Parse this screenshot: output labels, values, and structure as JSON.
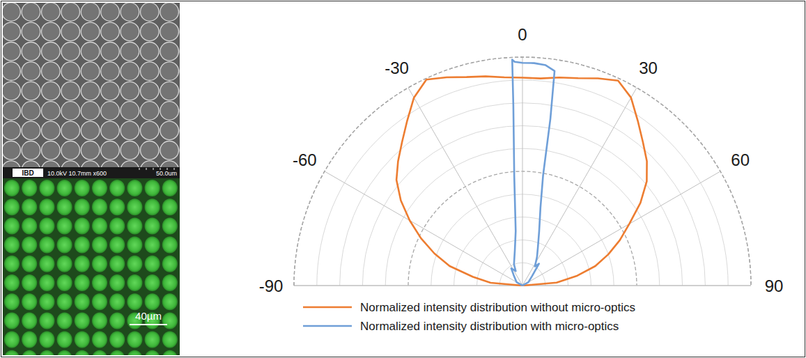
{
  "chart_data": {
    "type": "polar",
    "xlim": [
      -90,
      90
    ],
    "xticks": [
      -90,
      -60,
      -30,
      0,
      30,
      60,
      90
    ],
    "ylim": [
      0,
      1
    ],
    "yticks": [
      0,
      0.1,
      0.2,
      0.3,
      0.4,
      0.5,
      0.6,
      0.7,
      0.8,
      0.9,
      1
    ],
    "grid": true,
    "tick_labels": "x",
    "legend": "bottom",
    "series": [
      {
        "name": "Normalized intensity distribution without micro-optics",
        "color": "#ed7d31",
        "x": [
          -90,
          -85,
          -80,
          -75,
          -70,
          -65,
          -60,
          -55,
          -50,
          -45,
          -40,
          -35,
          -30,
          -25,
          -20,
          -15,
          -10,
          -5,
          0,
          5,
          10,
          15,
          20,
          25,
          30,
          35,
          40,
          45,
          50,
          55,
          60,
          65,
          70,
          75,
          80,
          85,
          90
        ],
        "values": [
          0,
          0.14,
          0.22,
          0.33,
          0.41,
          0.49,
          0.57,
          0.65,
          0.72,
          0.77,
          0.82,
          0.88,
          0.95,
          0.995,
          0.97,
          0.945,
          0.93,
          0.915,
          0.91,
          0.91,
          0.925,
          0.94,
          0.965,
          0.99,
          0.95,
          0.88,
          0.82,
          0.77,
          0.71,
          0.63,
          0.54,
          0.47,
          0.4,
          0.33,
          0.24,
          0.15,
          0
        ]
      },
      {
        "name": "Normalized intensity distribution with micro-optics",
        "color": "#6f9fd8",
        "x": [
          -90,
          -60,
          -40,
          -33,
          -25,
          -21.8,
          -12,
          -7.1,
          -4.3,
          -2.9,
          -2.6,
          -2,
          0,
          3,
          6,
          8.5,
          9.5,
          10.6,
          13,
          17,
          22,
          27,
          33,
          37,
          45,
          60,
          90
        ],
        "values": [
          0,
          0.03,
          0.06,
          0.09,
          0.07,
          0.1,
          0.16,
          0.24,
          0.48,
          0.79,
          0.99,
          0.98,
          0.975,
          0.975,
          0.97,
          0.95,
          0.74,
          0.49,
          0.35,
          0.25,
          0.18,
          0.14,
          0.1,
          0.12,
          0.06,
          0.03,
          0
        ]
      }
    ]
  },
  "micrographs": {
    "sem_label": "IBD",
    "sem_info": "10.0kV 10.7mm x600",
    "sem_scale": "50.0um",
    "fluorescence_scale": "40µm"
  }
}
